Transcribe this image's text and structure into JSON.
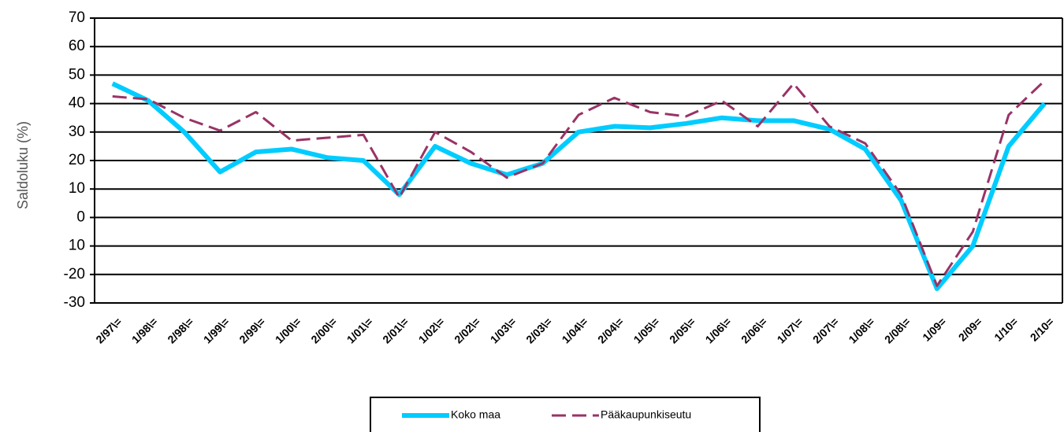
{
  "chart_data": {
    "type": "line",
    "y_label": "Saldoluku (%)",
    "categories": [
      "2/97\\=",
      "1/98\\=",
      "2/98\\=",
      "1/99\\=",
      "2/99\\=",
      "1/00\\=",
      "2/00\\=",
      "1/01\\=",
      "2/01\\=",
      "1/02\\=",
      "2/02\\=",
      "1/03\\=",
      "2/03\\=",
      "1/04\\=",
      "2/04\\=",
      "1/05\\=",
      "2/05\\=",
      "1/06\\=",
      "2/06\\=",
      "1/07\\=",
      "2/07\\=",
      "1/08\\=",
      "2/08\\=",
      "1/09=",
      "2/09=",
      "1/10=",
      "2/10="
    ],
    "series": [
      {
        "name": "Koko maa",
        "color": "#00ccff",
        "dashed": false,
        "values": [
          47,
          41,
          30,
          16,
          23,
          24,
          21,
          20,
          8,
          25,
          19,
          15,
          19,
          30,
          32,
          31.5,
          33,
          35,
          34,
          34,
          31,
          24,
          6,
          -25,
          -10,
          25,
          40
        ]
      },
      {
        "name": "Pääkaupunkiseutu",
        "color": "#993366",
        "dashed": true,
        "values": [
          42.5,
          41.5,
          35,
          30.5,
          37,
          27,
          28,
          29,
          7,
          30,
          23,
          14,
          19,
          36,
          42,
          37,
          35.5,
          41,
          32,
          47,
          32,
          26,
          8,
          -24,
          -5,
          36,
          48
        ]
      }
    ],
    "ylim": [
      -30,
      70
    ],
    "yticks": [
      70,
      60,
      50,
      40,
      30,
      20,
      10,
      0,
      {
        "value": -10,
        "label": "10"
      },
      -20,
      -30
    ],
    "grid": true,
    "legend": "bottom"
  }
}
